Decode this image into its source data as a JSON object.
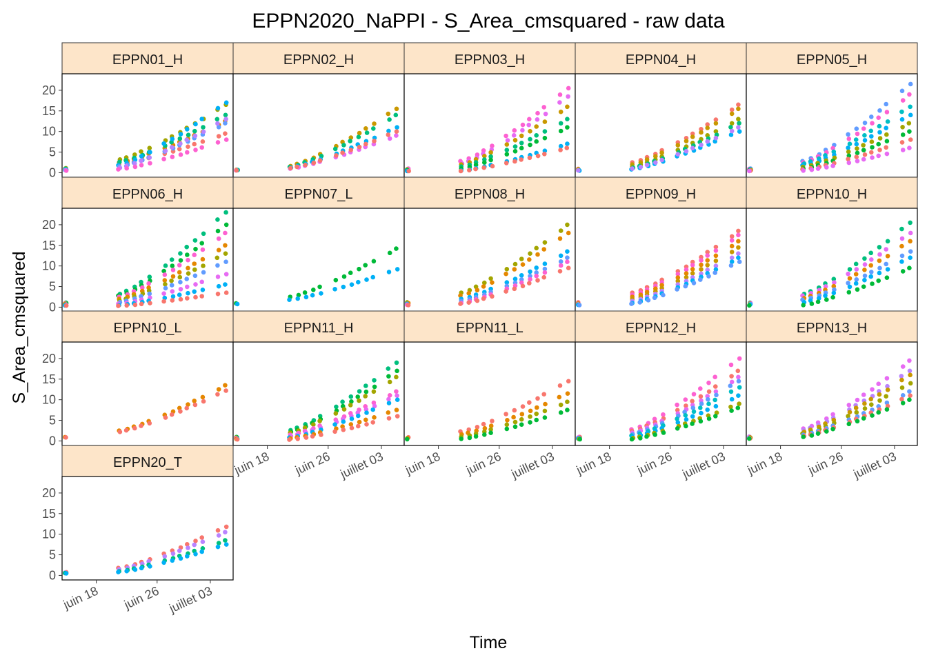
{
  "chart_data": {
    "type": "scatter",
    "title": "EPPN2020_NaPPI - S_Area_cmsquared - raw data",
    "xlabel": "Time",
    "ylabel": "S_Area_cmsquared",
    "x_tick_labels": [
      "juin 18",
      "juin 26",
      "juillet 03"
    ],
    "x_tick_days": [
      18,
      26,
      33
    ],
    "xlim_days": [
      13.5,
      36
    ],
    "y_ticks": [
      0,
      5,
      10,
      15,
      20
    ],
    "ylim": [
      -1.1,
      24
    ],
    "strip_color": "#fde5c9",
    "palette": [
      "#f8766d",
      "#e58700",
      "#c99800",
      "#a3a500",
      "#6bb100",
      "#00ba38",
      "#00bf7d",
      "#00c0af",
      "#00bcd8",
      "#00b0f6",
      "#619cff",
      "#b983ff",
      "#e76bf3",
      "#fd61d1",
      "#ff67a4"
    ],
    "panels": [
      {
        "name": "EPPN01_H",
        "series": [
          {
            "color": "#f8766d",
            "start": 2.0,
            "end": 9.5
          },
          {
            "color": "#e58700",
            "start": 2.5,
            "end": 12.5
          },
          {
            "color": "#a3a500",
            "start": 3.2,
            "end": 16.5
          },
          {
            "color": "#00bf7d",
            "start": 2.6,
            "end": 14.0
          },
          {
            "color": "#00b0f6",
            "start": 1.8,
            "end": 17.0
          },
          {
            "color": "#619cff",
            "start": 1.5,
            "end": 12.0
          },
          {
            "color": "#b983ff",
            "start": 1.2,
            "end": 13.0
          },
          {
            "color": "#fd61d1",
            "start": 0.8,
            "end": 8.0
          }
        ]
      },
      {
        "name": "EPPN02_H",
        "series": [
          {
            "color": "#c99800",
            "start": 1.6,
            "end": 15.5
          },
          {
            "color": "#00bf7d",
            "start": 1.4,
            "end": 14.0
          },
          {
            "color": "#00b0f6",
            "start": 1.2,
            "end": 11.0
          },
          {
            "color": "#e76bf3",
            "start": 1.0,
            "end": 9.0
          },
          {
            "color": "#f8766d",
            "start": 1.1,
            "end": 10.0
          }
        ]
      },
      {
        "name": "EPPN03_H",
        "series": [
          {
            "color": "#fd61d1",
            "start": 2.8,
            "end": 20.5
          },
          {
            "color": "#e76bf3",
            "start": 2.2,
            "end": 18.5
          },
          {
            "color": "#c99800",
            "start": 2.0,
            "end": 16.0
          },
          {
            "color": "#00bf7d",
            "start": 1.5,
            "end": 13.0
          },
          {
            "color": "#00ba38",
            "start": 1.0,
            "end": 11.0
          },
          {
            "color": "#00b0f6",
            "start": 0.5,
            "end": 7.0
          },
          {
            "color": "#f8766d",
            "start": 0.4,
            "end": 6.0
          }
        ]
      },
      {
        "name": "EPPN04_H",
        "series": [
          {
            "color": "#f8766d",
            "start": 2.5,
            "end": 16.5
          },
          {
            "color": "#c99800",
            "start": 2.0,
            "end": 15.5
          },
          {
            "color": "#a3a500",
            "start": 1.5,
            "end": 13.0
          },
          {
            "color": "#00bf7d",
            "start": 1.2,
            "end": 12.0
          },
          {
            "color": "#00b0f6",
            "start": 0.8,
            "end": 10.0
          },
          {
            "color": "#b983ff",
            "start": 1.0,
            "end": 11.0
          }
        ]
      },
      {
        "name": "EPPN05_H",
        "series": [
          {
            "color": "#619cff",
            "start": 2.8,
            "end": 21.5
          },
          {
            "color": "#fd61d1",
            "start": 2.5,
            "end": 19.0
          },
          {
            "color": "#00bfc4",
            "start": 2.2,
            "end": 16.0
          },
          {
            "color": "#00b0f6",
            "start": 1.8,
            "end": 14.0
          },
          {
            "color": "#a3a500",
            "start": 1.4,
            "end": 12.0
          },
          {
            "color": "#00ba38",
            "start": 1.0,
            "end": 10.0
          },
          {
            "color": "#f8766d",
            "start": 0.8,
            "end": 8.0
          },
          {
            "color": "#e76bf3",
            "start": 0.5,
            "end": 6.0
          }
        ]
      },
      {
        "name": "EPPN06_H",
        "series": [
          {
            "color": "#00bf7d",
            "start": 3.2,
            "end": 23.0
          },
          {
            "color": "#00ba38",
            "start": 2.8,
            "end": 20.0
          },
          {
            "color": "#fd61d1",
            "start": 2.5,
            "end": 18.0
          },
          {
            "color": "#e58700",
            "start": 2.0,
            "end": 15.0
          },
          {
            "color": "#a3a500",
            "start": 1.6,
            "end": 13.0
          },
          {
            "color": "#619cff",
            "start": 1.2,
            "end": 11.0
          },
          {
            "color": "#e76bf3",
            "start": 0.8,
            "end": 8.0
          },
          {
            "color": "#00b0f6",
            "start": 0.5,
            "end": 5.5
          },
          {
            "color": "#f8766d",
            "start": 0.3,
            "end": 3.5
          }
        ]
      },
      {
        "name": "EPPN07_L",
        "series": [
          {
            "color": "#00ba38",
            "start": 2.5,
            "end": 14.2
          },
          {
            "color": "#00b0f6",
            "start": 1.8,
            "end": 9.2
          }
        ]
      },
      {
        "name": "EPPN08_H",
        "series": [
          {
            "color": "#a3a500",
            "start": 3.5,
            "end": 20.0
          },
          {
            "color": "#e58700",
            "start": 2.8,
            "end": 18.0
          },
          {
            "color": "#00b0f6",
            "start": 2.0,
            "end": 13.5
          },
          {
            "color": "#619cff",
            "start": 1.5,
            "end": 12.0
          },
          {
            "color": "#fd61d1",
            "start": 1.0,
            "end": 11.0
          },
          {
            "color": "#f8766d",
            "start": 0.8,
            "end": 9.5
          }
        ]
      },
      {
        "name": "EPPN09_H",
        "series": [
          {
            "color": "#f8766d",
            "start": 3.5,
            "end": 18.5
          },
          {
            "color": "#fd61d1",
            "start": 3.0,
            "end": 17.5
          },
          {
            "color": "#e58700",
            "start": 2.5,
            "end": 16.0
          },
          {
            "color": "#c99800",
            "start": 2.0,
            "end": 14.5
          },
          {
            "color": "#b983ff",
            "start": 1.5,
            "end": 13.0
          },
          {
            "color": "#00b0f6",
            "start": 1.0,
            "end": 12.0
          },
          {
            "color": "#619cff",
            "start": 0.8,
            "end": 11.0
          }
        ]
      },
      {
        "name": "EPPN10_H",
        "series": [
          {
            "color": "#00bf7d",
            "start": 3.2,
            "end": 20.5
          },
          {
            "color": "#e76bf3",
            "start": 2.8,
            "end": 18.0
          },
          {
            "color": "#e58700",
            "start": 2.2,
            "end": 16.0
          },
          {
            "color": "#619cff",
            "start": 1.8,
            "end": 13.5
          },
          {
            "color": "#00b0f6",
            "start": 1.2,
            "end": 12.0
          },
          {
            "color": "#00ba38",
            "start": 0.5,
            "end": 9.5
          }
        ]
      },
      {
        "name": "EPPN10_L",
        "series": [
          {
            "color": "#e58700",
            "start": 2.5,
            "end": 13.5
          },
          {
            "color": "#f8766d",
            "start": 2.2,
            "end": 12.2
          }
        ]
      },
      {
        "name": "EPPN11_H",
        "series": [
          {
            "color": "#00bf7d",
            "start": 2.6,
            "end": 19.0
          },
          {
            "color": "#00ba38",
            "start": 2.2,
            "end": 17.0
          },
          {
            "color": "#a3a500",
            "start": 2.0,
            "end": 15.5
          },
          {
            "color": "#fd61d1",
            "start": 1.5,
            "end": 12.0
          },
          {
            "color": "#e76bf3",
            "start": 1.2,
            "end": 11.0
          },
          {
            "color": "#00b0f6",
            "start": 0.8,
            "end": 10.0
          },
          {
            "color": "#e58700",
            "start": 0.6,
            "end": 7.5
          },
          {
            "color": "#f8766d",
            "start": 0.3,
            "end": 6.0
          }
        ]
      },
      {
        "name": "EPPN11_L",
        "series": [
          {
            "color": "#f8766d",
            "start": 2.3,
            "end": 14.5
          },
          {
            "color": "#e58700",
            "start": 1.6,
            "end": 11.5
          },
          {
            "color": "#a3a500",
            "start": 1.0,
            "end": 9.5
          },
          {
            "color": "#00ba38",
            "start": 0.5,
            "end": 7.5
          }
        ]
      },
      {
        "name": "EPPN12_H",
        "series": [
          {
            "color": "#fd61d1",
            "start": 2.8,
            "end": 20.0
          },
          {
            "color": "#f8766d",
            "start": 2.4,
            "end": 17.0
          },
          {
            "color": "#e76bf3",
            "start": 2.0,
            "end": 15.5
          },
          {
            "color": "#619cff",
            "start": 1.6,
            "end": 14.5
          },
          {
            "color": "#00bfc4",
            "start": 1.3,
            "end": 13.0
          },
          {
            "color": "#00b0f6",
            "start": 1.0,
            "end": 11.0
          },
          {
            "color": "#a3a500",
            "start": 0.7,
            "end": 9.0
          },
          {
            "color": "#00ba38",
            "start": 0.4,
            "end": 8.0
          }
        ]
      },
      {
        "name": "EPPN13_H",
        "series": [
          {
            "color": "#e76bf3",
            "start": 3.0,
            "end": 19.5
          },
          {
            "color": "#b983ff",
            "start": 2.6,
            "end": 17.0
          },
          {
            "color": "#c99800",
            "start": 2.2,
            "end": 16.0
          },
          {
            "color": "#a3a500",
            "start": 1.8,
            "end": 14.0
          },
          {
            "color": "#619cff",
            "start": 1.5,
            "end": 12.0
          },
          {
            "color": "#f8766d",
            "start": 1.2,
            "end": 11.0
          },
          {
            "color": "#00ba38",
            "start": 1.0,
            "end": 10.0
          }
        ]
      },
      {
        "name": "EPPN20_T",
        "series": [
          {
            "color": "#f8766d",
            "start": 1.8,
            "end": 11.8
          },
          {
            "color": "#b983ff",
            "start": 1.5,
            "end": 10.5
          },
          {
            "color": "#00bf7d",
            "start": 1.0,
            "end": 8.5
          },
          {
            "color": "#00b0f6",
            "start": 0.8,
            "end": 7.5
          }
        ]
      }
    ]
  }
}
